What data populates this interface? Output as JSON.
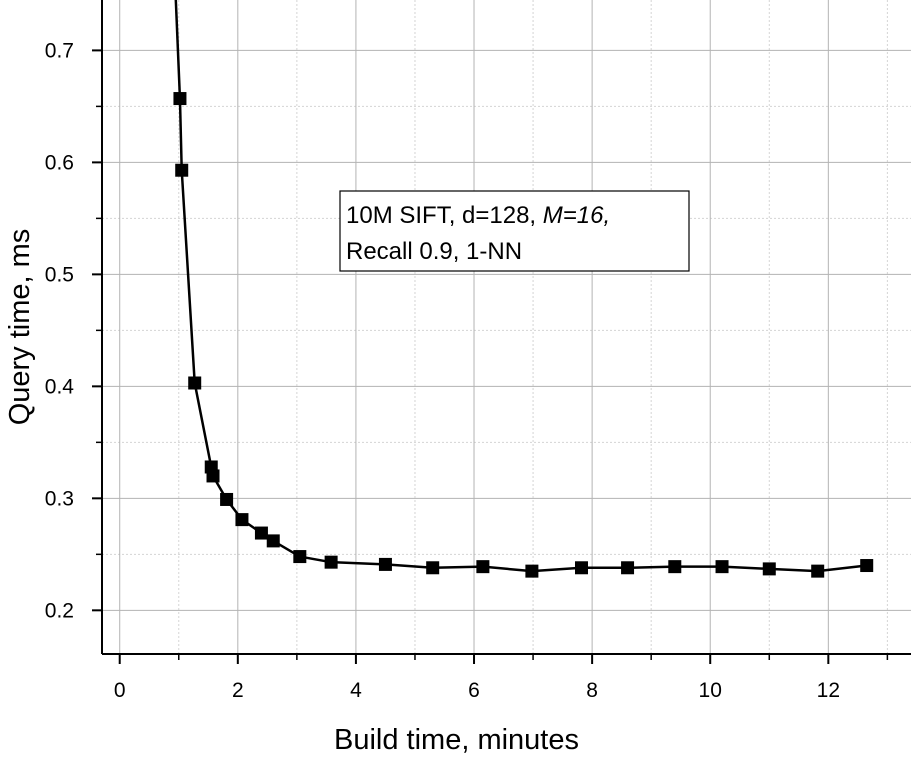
{
  "chart_data": {
    "type": "line",
    "xlabel": "Build time, minutes",
    "ylabel": "Query time, ms",
    "xlim": [
      -0.3,
      13.4
    ],
    "ylim": [
      0.161,
      0.745
    ],
    "xticks": [
      "0",
      "2",
      "4",
      "6",
      "8",
      "10",
      "12"
    ],
    "yticks": [
      "0.2",
      "0.3",
      "0.4",
      "0.5",
      "0.6",
      "0.7"
    ],
    "grid": true,
    "legend": "none",
    "annotation": {
      "line1_prefix": "10M SIFT, d=128, ",
      "line1_italic": "M=16,",
      "line2": "Recall 0.9, 1-NN"
    },
    "series": [
      {
        "marker": "square",
        "color": "#000000",
        "x": [
          0.95,
          1.02,
          1.05,
          1.27,
          1.55,
          1.58,
          1.81,
          2.07,
          2.4,
          2.6,
          3.05,
          3.58,
          4.5,
          5.3,
          6.15,
          6.98,
          7.82,
          8.6,
          9.4,
          10.2,
          11.0,
          11.82,
          12.65
        ],
        "y": [
          0.745,
          0.657,
          0.593,
          0.403,
          0.328,
          0.32,
          0.299,
          0.281,
          0.269,
          0.262,
          0.248,
          0.243,
          0.241,
          0.238,
          0.239,
          0.235,
          0.238,
          0.238,
          0.239,
          0.239,
          0.237,
          0.235,
          0.24
        ]
      }
    ]
  }
}
